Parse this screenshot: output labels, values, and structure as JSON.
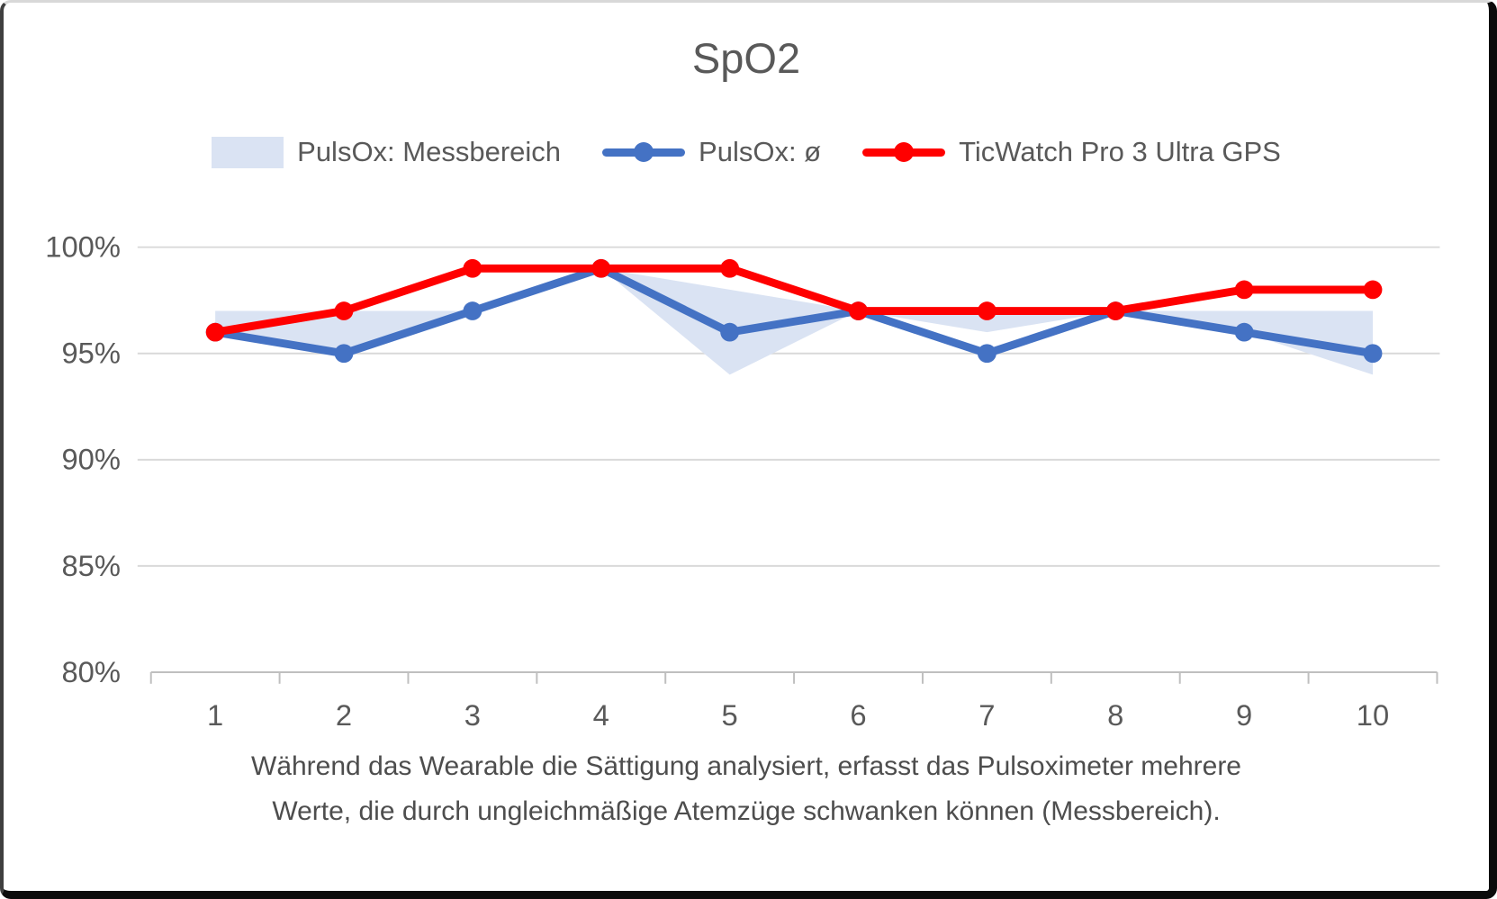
{
  "chart_data": {
    "type": "line",
    "title": "SpO2",
    "categories": [
      1,
      2,
      3,
      4,
      5,
      6,
      7,
      8,
      9,
      10
    ],
    "series": [
      {
        "name": "PulsOx: Messbereich",
        "type": "range-area",
        "color": "#dae3f3",
        "min": [
          96,
          95,
          97,
          99,
          94,
          97,
          96,
          97,
          96,
          94
        ],
        "max": [
          97,
          97,
          97,
          99,
          98,
          97,
          97,
          97,
          97,
          97
        ]
      },
      {
        "name": "PulsOx: ø",
        "type": "line",
        "color": "#4472c4",
        "values": [
          96,
          95,
          97,
          99,
          96,
          97,
          95,
          97,
          96,
          95
        ]
      },
      {
        "name": "TicWatch Pro 3 Ultra GPS",
        "type": "line",
        "color": "#ff0000",
        "values": [
          96,
          97,
          99,
          99,
          99,
          97,
          97,
          97,
          98,
          98
        ]
      }
    ],
    "y_axis": {
      "min": 80,
      "max": 100,
      "tick_step": 5,
      "tick_values": [
        100,
        95,
        90,
        85,
        80
      ],
      "tick_labels": [
        "100%",
        "95%",
        "90%",
        "85%",
        "80%"
      ]
    },
    "x_axis": {
      "labels": [
        "1",
        "2",
        "3",
        "4",
        "5",
        "6",
        "7",
        "8",
        "9",
        "10"
      ]
    },
    "grid": true,
    "legend_position": "top",
    "caption_lines": [
      "Während das Wearable die Sättigung analysiert, erfasst das Pulsoximeter mehrere",
      "Werte, die durch ungleichmäßige Atemzüge schwanken können (Messbereich)."
    ]
  },
  "colors": {
    "text": "#595959",
    "gridline": "#d9d9d9",
    "axis": "#bfbfbf",
    "background": "#ffffff"
  }
}
